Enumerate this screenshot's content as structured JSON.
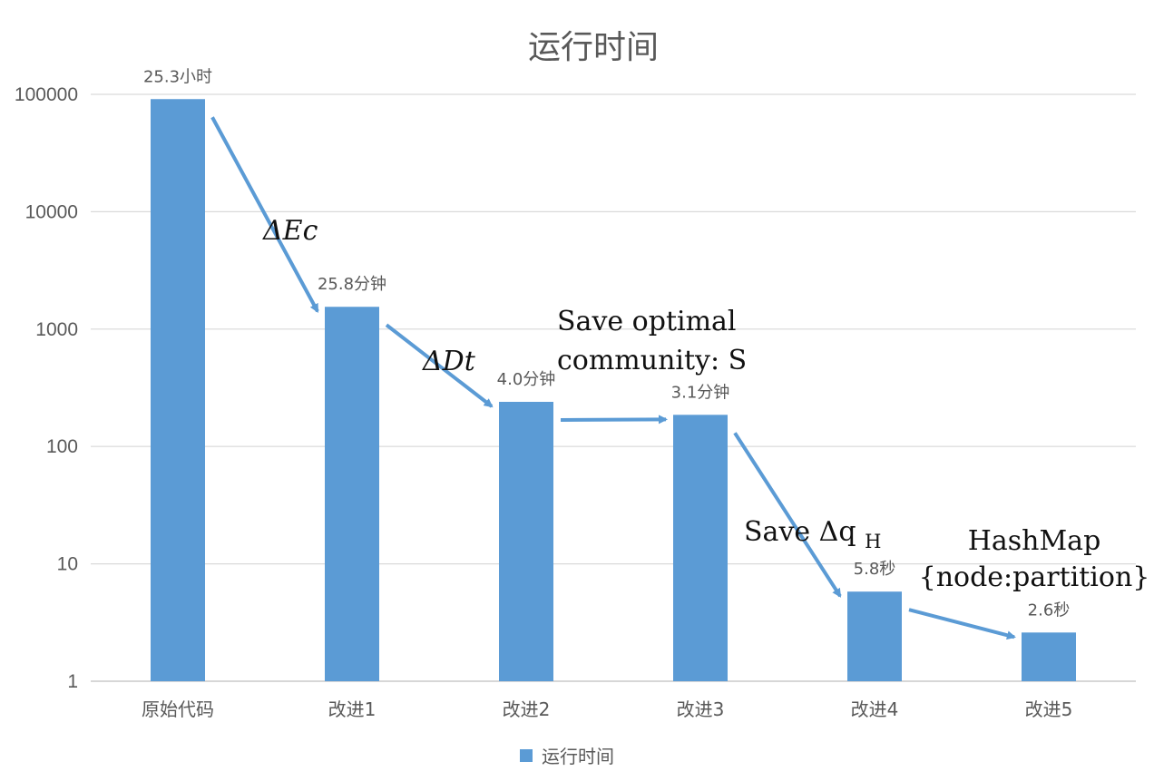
{
  "chart_data": {
    "type": "bar",
    "title": "运行时间",
    "scale": "log",
    "ylim": [
      1,
      100000
    ],
    "y_ticks": [
      "1",
      "10",
      "100",
      "1000",
      "10000",
      "100000"
    ],
    "grid": true,
    "legend_position": "bottom",
    "bar_color": "#5B9BD5",
    "categories": [
      "原始代码",
      "改进1",
      "改进2",
      "改进3",
      "改进4",
      "改进5"
    ],
    "series": [
      {
        "name": "运行时间",
        "values": [
          91080,
          1548,
          240,
          186,
          5.8,
          2.6
        ],
        "data_labels": [
          "25.3小时",
          "25.8分钟",
          "4.0分钟",
          "3.1分钟",
          "5.8秒",
          "2.6秒"
        ]
      }
    ],
    "annotations": [
      {
        "id": "a1",
        "text": "ΔEc",
        "style": "italic"
      },
      {
        "id": "a2",
        "text": "ΔDt",
        "style": "italic"
      },
      {
        "id": "a3",
        "lines": [
          "Save optimal",
          "community: S"
        ],
        "style": "normal"
      },
      {
        "id": "a4",
        "text": "Save Δq",
        "subscript": "H",
        "style": "normal"
      },
      {
        "id": "a5",
        "lines": [
          "HashMap",
          "{node:partition}"
        ],
        "style": "normal"
      }
    ]
  }
}
